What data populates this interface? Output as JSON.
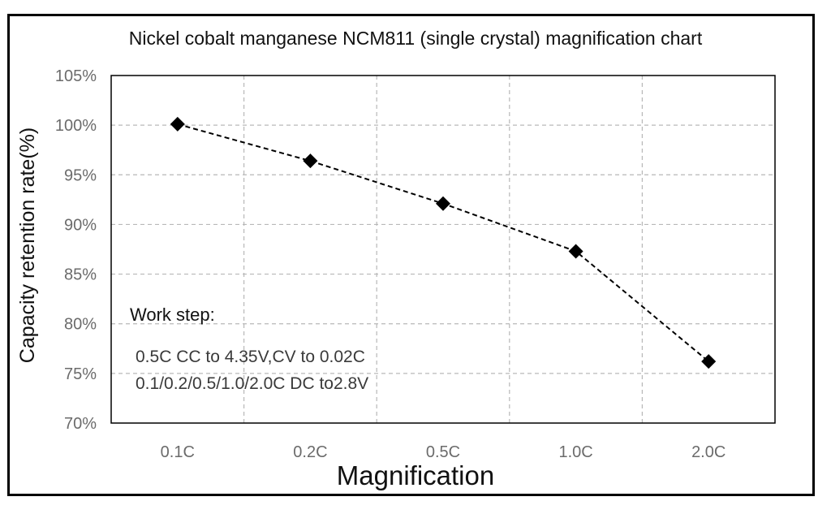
{
  "chart_data": {
    "type": "line",
    "title": "Nickel cobalt manganese NCM811 (single crystal) magnification chart",
    "xlabel": "Magnification",
    "ylabel": "Capacity retention rate(%)",
    "categories": [
      "0.1C",
      "0.2C",
      "0.5C",
      "1.0C",
      "2.0C"
    ],
    "series": [
      {
        "values": [
          100.1,
          96.4,
          92.1,
          87.3,
          76.2
        ]
      }
    ],
    "ylim": [
      70,
      105
    ],
    "yticks": [
      70,
      75,
      80,
      85,
      90,
      95,
      100,
      105
    ],
    "ytick_labels": [
      "70%",
      "75%",
      "80%",
      "85%",
      "90%",
      "95%",
      "100%",
      "105%"
    ],
    "grid": true,
    "legend": "none",
    "marker": "diamond",
    "line_style": "dashed",
    "annotation": {
      "heading": "Work step:",
      "lines": [
        "0.5C CC to 4.35V,CV to 0.02C",
        "0.1/0.2/0.5/1.0/2.0C DC to2.8V"
      ]
    },
    "colors": {
      "series": "#000000",
      "grid": "#b8b8b8",
      "axis": "#000000",
      "tick_text": "#6b6b6b"
    }
  }
}
